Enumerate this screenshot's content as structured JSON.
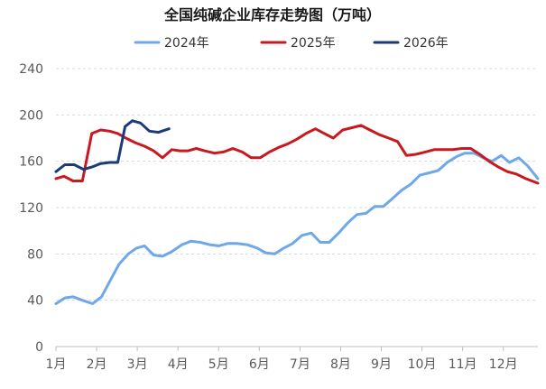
{
  "chart_data": {
    "type": "line",
    "title": "全国纯碱企业库存走势图（万吨）",
    "xlabel": "",
    "ylabel": "",
    "x_range": [
      1,
      12.85
    ],
    "ylim": [
      0,
      240
    ],
    "yticks": [
      0,
      40,
      80,
      120,
      160,
      200,
      240
    ],
    "xticks": [
      {
        "label": "1月",
        "x": 1
      },
      {
        "label": "2月",
        "x": 2
      },
      {
        "label": "3月",
        "x": 3
      },
      {
        "label": "4月",
        "x": 4
      },
      {
        "label": "5月",
        "x": 5
      },
      {
        "label": "6月",
        "x": 6
      },
      {
        "label": "7月",
        "x": 7
      },
      {
        "label": "8月",
        "x": 8
      },
      {
        "label": "9月",
        "x": 9
      },
      {
        "label": "10月",
        "x": 10
      },
      {
        "label": "11月",
        "x": 11
      },
      {
        "label": "12月",
        "x": 12
      }
    ],
    "grid": "horizontal",
    "legend_position": "top",
    "series": [
      {
        "name": "2024年",
        "color": "#6fa8e8",
        "points": [
          [
            1.0,
            37
          ],
          [
            1.22,
            42
          ],
          [
            1.42,
            43
          ],
          [
            1.65,
            40
          ],
          [
            1.9,
            37
          ],
          [
            2.12,
            43
          ],
          [
            2.35,
            58
          ],
          [
            2.55,
            71
          ],
          [
            2.78,
            80
          ],
          [
            2.98,
            85
          ],
          [
            3.18,
            87
          ],
          [
            3.4,
            79
          ],
          [
            3.62,
            78
          ],
          [
            3.85,
            82
          ],
          [
            4.1,
            88
          ],
          [
            4.32,
            91
          ],
          [
            4.55,
            90
          ],
          [
            4.78,
            88
          ],
          [
            5.0,
            87
          ],
          [
            5.22,
            89
          ],
          [
            5.45,
            89
          ],
          [
            5.7,
            88
          ],
          [
            5.95,
            85
          ],
          [
            6.15,
            81
          ],
          [
            6.38,
            80
          ],
          [
            6.6,
            85
          ],
          [
            6.82,
            89
          ],
          [
            7.05,
            96
          ],
          [
            7.28,
            98
          ],
          [
            7.5,
            90
          ],
          [
            7.72,
            90
          ],
          [
            7.95,
            98
          ],
          [
            8.18,
            107
          ],
          [
            8.4,
            114
          ],
          [
            8.62,
            115
          ],
          [
            8.84,
            121
          ],
          [
            9.05,
            121
          ],
          [
            9.28,
            128
          ],
          [
            9.5,
            135
          ],
          [
            9.72,
            140
          ],
          [
            9.95,
            148
          ],
          [
            10.18,
            150
          ],
          [
            10.4,
            152
          ],
          [
            10.62,
            159
          ],
          [
            10.85,
            164
          ],
          [
            11.05,
            167
          ],
          [
            11.28,
            167
          ],
          [
            11.5,
            163
          ],
          [
            11.72,
            160
          ],
          [
            11.95,
            165
          ],
          [
            12.15,
            159
          ],
          [
            12.38,
            163
          ],
          [
            12.6,
            156
          ],
          [
            12.85,
            145
          ]
        ]
      },
      {
        "name": "2025年",
        "color": "#c8191f",
        "points": [
          [
            1.0,
            145
          ],
          [
            1.2,
            147
          ],
          [
            1.42,
            143
          ],
          [
            1.65,
            143
          ],
          [
            1.88,
            184
          ],
          [
            2.1,
            187
          ],
          [
            2.32,
            186
          ],
          [
            2.52,
            184
          ],
          [
            2.72,
            180
          ],
          [
            2.95,
            176
          ],
          [
            3.18,
            173
          ],
          [
            3.4,
            169
          ],
          [
            3.62,
            163
          ],
          [
            3.85,
            170
          ],
          [
            4.05,
            169
          ],
          [
            4.25,
            169
          ],
          [
            4.45,
            171
          ],
          [
            4.65,
            169
          ],
          [
            4.9,
            167
          ],
          [
            5.12,
            168
          ],
          [
            5.35,
            171
          ],
          [
            5.58,
            168
          ],
          [
            5.8,
            163
          ],
          [
            6.02,
            163
          ],
          [
            6.25,
            168
          ],
          [
            6.48,
            172
          ],
          [
            6.7,
            175
          ],
          [
            6.92,
            179
          ],
          [
            7.15,
            184
          ],
          [
            7.38,
            188
          ],
          [
            7.6,
            184
          ],
          [
            7.82,
            180
          ],
          [
            8.05,
            187
          ],
          [
            8.28,
            189
          ],
          [
            8.5,
            191
          ],
          [
            8.72,
            187
          ],
          [
            8.95,
            183
          ],
          [
            9.18,
            180
          ],
          [
            9.4,
            177
          ],
          [
            9.62,
            165
          ],
          [
            9.85,
            166
          ],
          [
            10.08,
            168
          ],
          [
            10.3,
            170
          ],
          [
            10.52,
            170
          ],
          [
            10.75,
            170
          ],
          [
            10.98,
            171
          ],
          [
            11.2,
            171
          ],
          [
            11.42,
            166
          ],
          [
            11.65,
            160
          ],
          [
            11.88,
            155
          ],
          [
            12.1,
            151
          ],
          [
            12.32,
            149
          ],
          [
            12.55,
            145
          ],
          [
            12.85,
            141
          ]
        ]
      },
      {
        "name": "2026年",
        "color": "#1a3a7a",
        "points": [
          [
            1.0,
            151
          ],
          [
            1.22,
            157
          ],
          [
            1.45,
            157
          ],
          [
            1.68,
            153
          ],
          [
            1.88,
            155
          ],
          [
            2.1,
            158
          ],
          [
            2.32,
            159
          ],
          [
            2.52,
            159
          ],
          [
            2.7,
            190
          ],
          [
            2.88,
            195
          ],
          [
            3.08,
            193
          ],
          [
            3.3,
            186
          ],
          [
            3.52,
            185
          ],
          [
            3.78,
            188
          ]
        ]
      }
    ]
  }
}
